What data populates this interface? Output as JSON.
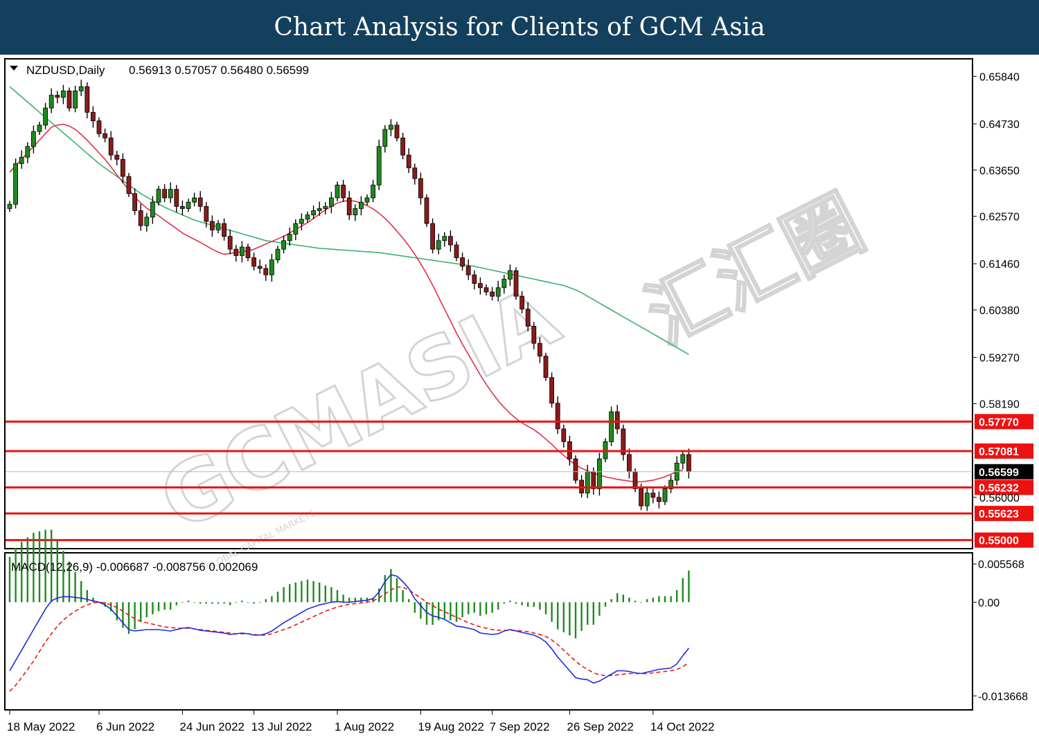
{
  "banner": {
    "title": "Chart Analysis for Clients of GCM Asia"
  },
  "watermark": {
    "brand": "GCMASIA",
    "brand_cn": "汇汇圈",
    "tagline": "GLOBAL CAPITAL MARKETS"
  },
  "colors": {
    "banner": "#13405d",
    "bull": "#1e8a1e",
    "bear": "#8b1a1a",
    "ma_fast": "#e0304a",
    "ma_slow": "#3cb070",
    "level": "#ee1111",
    "macd": "#1a2bdd",
    "signal": "#ee1111",
    "hist": "#1e8a1e",
    "price_tag": "#000000"
  },
  "chart_data": {
    "type": "candlestick",
    "symbol": "NZDUSD",
    "timeframe": "Daily",
    "ohlc_header": {
      "open": "0.56913",
      "high": "0.57057",
      "low": "0.56480",
      "close": "0.56599"
    },
    "price_axis": {
      "ticks": [
        "0.65840",
        "0.64730",
        "0.63650",
        "0.62570",
        "0.61460",
        "0.60380",
        "0.59270",
        "0.58190",
        "0.56000"
      ]
    },
    "ylim": [
      0.548,
      0.6625
    ],
    "current_price": "0.56599",
    "levels": [
      "0.57770",
      "0.57081",
      "0.56232",
      "0.55623",
      "0.55000"
    ],
    "x_labels": [
      {
        "label": "18 May 2022",
        "index": 0
      },
      {
        "label": "6 Jun 2022",
        "index": 15
      },
      {
        "label": "24 Jun 2022",
        "index": 29
      },
      {
        "label": "13 Jul 2022",
        "index": 41
      },
      {
        "label": "1 Aug 2022",
        "index": 55
      },
      {
        "label": "19 Aug 2022",
        "index": 69
      },
      {
        "label": "7 Sep 2022",
        "index": 81
      },
      {
        "label": "26 Sep 2022",
        "index": 94
      },
      {
        "label": "14 Oct 2022",
        "index": 108
      }
    ],
    "closes": [
      0.6285,
      0.638,
      0.6395,
      0.642,
      0.6455,
      0.647,
      0.651,
      0.654,
      0.6535,
      0.655,
      0.651,
      0.655,
      0.656,
      0.65,
      0.648,
      0.645,
      0.644,
      0.64,
      0.639,
      0.635,
      0.631,
      0.627,
      0.6235,
      0.6255,
      0.629,
      0.632,
      0.63,
      0.632,
      0.628,
      0.6275,
      0.629,
      0.63,
      0.628,
      0.6245,
      0.6225,
      0.624,
      0.621,
      0.618,
      0.6165,
      0.6185,
      0.616,
      0.614,
      0.6135,
      0.612,
      0.6155,
      0.618,
      0.62,
      0.6215,
      0.624,
      0.625,
      0.626,
      0.627,
      0.6275,
      0.628,
      0.63,
      0.633,
      0.63,
      0.626,
      0.6275,
      0.629,
      0.63,
      0.633,
      0.642,
      0.646,
      0.647,
      0.644,
      0.64,
      0.637,
      0.6345,
      0.63,
      0.624,
      0.618,
      0.62,
      0.621,
      0.619,
      0.616,
      0.614,
      0.612,
      0.61,
      0.609,
      0.608,
      0.607,
      0.609,
      0.611,
      0.613,
      0.607,
      0.604,
      0.6,
      0.596,
      0.593,
      0.588,
      0.582,
      0.576,
      0.573,
      0.569,
      0.564,
      0.561,
      0.566,
      0.562,
      0.569,
      0.573,
      0.58,
      0.576,
      0.57,
      0.566,
      0.562,
      0.558,
      0.561,
      0.56,
      0.559,
      0.562,
      0.564,
      0.568,
      0.57,
      0.566
    ],
    "ma_fast": {
      "start": 0,
      "values": [
        0.636,
        0.6375,
        0.639,
        0.6405,
        0.642,
        0.6435,
        0.645,
        0.6465,
        0.647,
        0.6472,
        0.6468,
        0.646,
        0.6448,
        0.6435,
        0.642,
        0.6405,
        0.639,
        0.6372,
        0.6354,
        0.6336,
        0.6318,
        0.6302,
        0.6288,
        0.6276,
        0.6267,
        0.6258,
        0.6248,
        0.6238,
        0.6228,
        0.6218,
        0.621,
        0.6203,
        0.6196,
        0.6188,
        0.618,
        0.6173,
        0.6168,
        0.617,
        0.6172,
        0.6174,
        0.6176,
        0.618,
        0.6186,
        0.6192,
        0.6198,
        0.6204,
        0.621,
        0.6218,
        0.6226,
        0.6234,
        0.6242,
        0.6252,
        0.6262,
        0.6272,
        0.628,
        0.6288,
        0.6292,
        0.6294,
        0.6292,
        0.6288,
        0.6282,
        0.6274,
        0.6264,
        0.6252,
        0.6238,
        0.6222,
        0.6206,
        0.6188,
        0.6168,
        0.6146,
        0.6122,
        0.6096,
        0.6068,
        0.604,
        0.6012,
        0.5984,
        0.5958,
        0.5934,
        0.591,
        0.5886,
        0.5864,
        0.5844,
        0.5826,
        0.581,
        0.5796,
        0.5784,
        0.5774,
        0.5766,
        0.5758,
        0.5748,
        0.5736,
        0.5724,
        0.571,
        0.5698,
        0.5686,
        0.5676,
        0.5668,
        0.5662,
        0.5656,
        0.5652,
        0.5648,
        0.5645,
        0.5642,
        0.564,
        0.5638,
        0.5636,
        0.5636,
        0.5638,
        0.564,
        0.5644,
        0.5648,
        0.5654,
        0.566,
        0.5664
      ]
    },
    "ma_slow": {
      "start": 0,
      "values": [
        0.656,
        0.6548,
        0.6536,
        0.6524,
        0.6512,
        0.65,
        0.6488,
        0.6476,
        0.6464,
        0.6452,
        0.644,
        0.6428,
        0.6416,
        0.6404,
        0.6392,
        0.638,
        0.637,
        0.636,
        0.635,
        0.634,
        0.633,
        0.632,
        0.631,
        0.6302,
        0.6294,
        0.6286,
        0.6278,
        0.6272,
        0.6266,
        0.626,
        0.6254,
        0.6248,
        0.6244,
        0.624,
        0.6236,
        0.6232,
        0.6228,
        0.6224,
        0.622,
        0.6216,
        0.6212,
        0.6208,
        0.6204,
        0.62,
        0.6198,
        0.6196,
        0.6194,
        0.6192,
        0.619,
        0.6188,
        0.6186,
        0.6184,
        0.6182,
        0.6181,
        0.618,
        0.6179,
        0.6178,
        0.6177,
        0.6176,
        0.6175,
        0.6174,
        0.6173,
        0.6172,
        0.617,
        0.6168,
        0.6166,
        0.6164,
        0.6162,
        0.616,
        0.6158,
        0.6156,
        0.6154,
        0.6152,
        0.615,
        0.6148,
        0.6146,
        0.6144,
        0.6142,
        0.614,
        0.6137,
        0.6134,
        0.6131,
        0.6128,
        0.6125,
        0.6122,
        0.6119,
        0.6116,
        0.6113,
        0.611,
        0.6107,
        0.6104,
        0.6101,
        0.6098,
        0.6095,
        0.609,
        0.6085,
        0.6078,
        0.607,
        0.6062,
        0.6054,
        0.6046,
        0.6038,
        0.603,
        0.6022,
        0.6014,
        0.6006,
        0.5998,
        0.599,
        0.5982,
        0.5974,
        0.5966,
        0.5958,
        0.595,
        0.5942,
        0.5934
      ]
    },
    "macd": {
      "label": "MACD(12,26,9) -0.006687 -0.008756 0.002069",
      "axis_ticks": [
        "0.005568",
        "0.00",
        "-0.013668"
      ],
      "ylim": [
        -0.0157,
        0.0072
      ],
      "macd": [
        -0.01,
        -0.0085,
        -0.007,
        -0.0055,
        -0.004,
        -0.0025,
        -0.001,
        0.0002,
        0.0006,
        0.0008,
        0.0008,
        0.0007,
        0.0006,
        0.0004,
        0.0002,
        0.0,
        -0.0004,
        -0.001,
        -0.002,
        -0.003,
        -0.004,
        -0.0042,
        -0.0041,
        -0.004,
        -0.004,
        -0.004,
        -0.0041,
        -0.0042,
        -0.004,
        -0.0038,
        -0.0037,
        -0.0039,
        -0.0041,
        -0.0042,
        -0.0043,
        -0.0044,
        -0.0045,
        -0.0047,
        -0.0046,
        -0.0045,
        -0.0046,
        -0.0048,
        -0.0048,
        -0.0046,
        -0.0042,
        -0.0036,
        -0.003,
        -0.0025,
        -0.002,
        -0.0015,
        -0.001,
        -0.0007,
        -0.0004,
        -0.0002,
        0.0,
        0.0001,
        0.0,
        0.0,
        0.0001,
        0.0002,
        0.0003,
        0.0005,
        0.0015,
        0.003,
        0.004,
        0.0038,
        0.003,
        0.002,
        0.0005,
        -0.0005,
        -0.0015,
        -0.002,
        -0.0022,
        -0.0025,
        -0.003,
        -0.0035,
        -0.0036,
        -0.0038,
        -0.004,
        -0.0045,
        -0.0046,
        -0.0047,
        -0.0046,
        -0.0042,
        -0.004,
        -0.0042,
        -0.0044,
        -0.0046,
        -0.0048,
        -0.0052,
        -0.0058,
        -0.0068,
        -0.008,
        -0.009,
        -0.01,
        -0.011,
        -0.0112,
        -0.0113,
        -0.0118,
        -0.0115,
        -0.011,
        -0.0105,
        -0.01,
        -0.01,
        -0.0101,
        -0.0103,
        -0.0104,
        -0.0102,
        -0.01,
        -0.0098,
        -0.0097,
        -0.0096,
        -0.009,
        -0.0078,
        -0.0067
      ],
      "signal": [
        -0.013,
        -0.0121,
        -0.011,
        -0.0098,
        -0.0086,
        -0.0072,
        -0.0058,
        -0.0046,
        -0.0035,
        -0.0026,
        -0.0019,
        -0.0013,
        -0.0008,
        -0.0004,
        -0.0001,
        0.0,
        -0.0001,
        -0.0004,
        -0.0008,
        -0.0013,
        -0.0019,
        -0.0024,
        -0.0028,
        -0.003,
        -0.0032,
        -0.0034,
        -0.0036,
        -0.0037,
        -0.0038,
        -0.0038,
        -0.0038,
        -0.0039,
        -0.004,
        -0.0041,
        -0.0042,
        -0.0043,
        -0.0044,
        -0.0045,
        -0.0046,
        -0.0046,
        -0.0046,
        -0.0047,
        -0.0048,
        -0.0048,
        -0.0046,
        -0.0043,
        -0.004,
        -0.0037,
        -0.0033,
        -0.0029,
        -0.0025,
        -0.0021,
        -0.0017,
        -0.0013,
        -0.001,
        -0.0007,
        -0.0005,
        -0.0003,
        -0.0002,
        -0.0001,
        0.0,
        0.0002,
        0.0006,
        0.0012,
        0.0018,
        0.0022,
        0.0022,
        0.0018,
        0.0012,
        0.0006,
        0.0,
        -0.0005,
        -0.001,
        -0.0014,
        -0.0018,
        -0.0022,
        -0.0026,
        -0.003,
        -0.0033,
        -0.0036,
        -0.0038,
        -0.004,
        -0.0041,
        -0.0041,
        -0.0041,
        -0.0041,
        -0.0042,
        -0.0043,
        -0.0045,
        -0.0047,
        -0.005,
        -0.0055,
        -0.0062,
        -0.007,
        -0.0078,
        -0.0086,
        -0.0093,
        -0.0098,
        -0.0103,
        -0.0106,
        -0.0107,
        -0.0107,
        -0.0106,
        -0.0105,
        -0.0104,
        -0.0104,
        -0.0104,
        -0.0104,
        -0.0103,
        -0.0102,
        -0.0101,
        -0.01,
        -0.0098,
        -0.0094,
        -0.0088
      ]
    }
  }
}
